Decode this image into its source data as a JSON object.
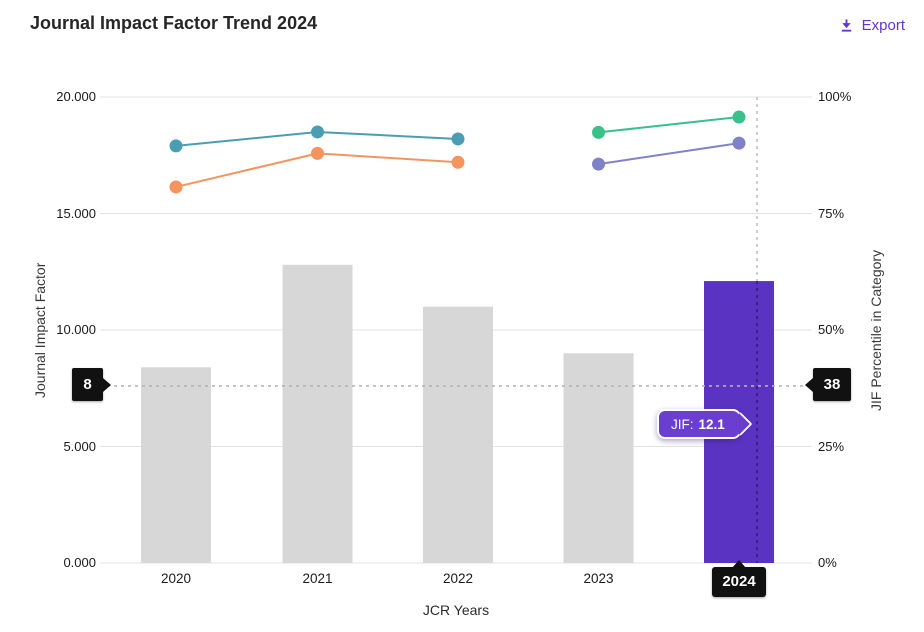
{
  "header": {
    "title": "Journal Impact Factor Trend 2024",
    "export_label": "Export"
  },
  "colors": {
    "bar_default": "#d7d7d7",
    "bar_highlight": "#5b33c3",
    "tooltip_bg": "#6a3fd0",
    "export_accent": "#6236d2",
    "gridline": "#e3e3e3",
    "crosshair": "#b5b5b5",
    "badge_bg": "#111111",
    "series_teal": "#4a9db2",
    "series_orange": "#f4945e",
    "series_green": "#38c18b",
    "series_lavender": "#7f82c7"
  },
  "chart_data": {
    "type": "combo_bar_line",
    "title": "Journal Impact Factor Trend 2024",
    "categories": [
      "2020",
      "2021",
      "2022",
      "2023",
      "2024"
    ],
    "bars": {
      "name": "Journal Impact Factor",
      "values": [
        8.4,
        12.8,
        11.0,
        9.0,
        12.1
      ],
      "highlight_index": 4
    },
    "line_series": [
      {
        "name": "jif-percentile-category-teal",
        "color": "#4a9db2",
        "values": [
          89.5,
          92.5,
          91.0,
          null,
          null
        ]
      },
      {
        "name": "jif-percentile-category-orange",
        "color": "#f4945e",
        "values": [
          80.7,
          87.9,
          86.0,
          null,
          null
        ]
      },
      {
        "name": "jif-percentile-category-green",
        "color": "#38c18b",
        "values": [
          null,
          null,
          null,
          92.4,
          95.7
        ]
      },
      {
        "name": "jif-percentile-category-lavender",
        "color": "#7f82c7",
        "values": [
          null,
          null,
          null,
          85.6,
          90.1
        ]
      }
    ],
    "left_axis": {
      "title": "Journal Impact Factor",
      "ticks": [
        "20.000",
        "15.000",
        "10.000",
        "5.000",
        "0.000"
      ],
      "range": [
        0,
        20
      ],
      "grid": true
    },
    "right_axis": {
      "title": "JIF Percentile in Category",
      "ticks": [
        "100%",
        "75%",
        "50%",
        "25%",
        "0%"
      ],
      "range": [
        0,
        100
      ]
    },
    "x_axis": {
      "title": "JCR Years",
      "selected_year": "2024"
    },
    "crosshair": {
      "left_value": "8",
      "right_value": "38",
      "percentile": 38
    },
    "tooltip": {
      "label": "JIF:",
      "value": "12.1"
    }
  }
}
